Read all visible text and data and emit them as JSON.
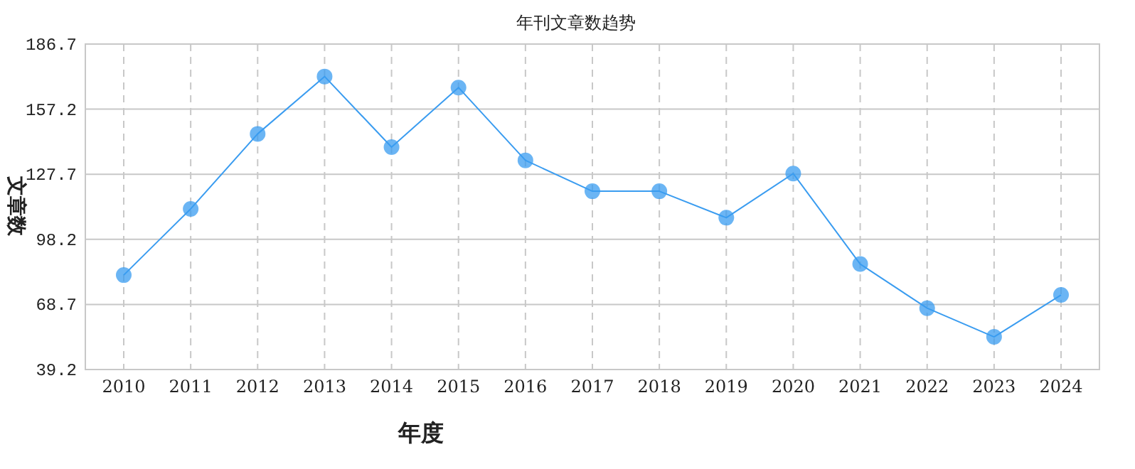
{
  "chart_data": {
    "type": "line",
    "title": "年刊文章数趋势",
    "xlabel": "年度",
    "ylabel": "文章数",
    "categories": [
      "2010",
      "2011",
      "2012",
      "2013",
      "2014",
      "2015",
      "2016",
      "2017",
      "2018",
      "2019",
      "2020",
      "2021",
      "2022",
      "2023",
      "2024"
    ],
    "series": [
      {
        "color": "#3a9cf0",
        "values": [
          82,
          112,
          146,
          172,
          140,
          167,
          134,
          120,
          120,
          108,
          128,
          87,
          67,
          54,
          73
        ]
      }
    ],
    "ylim": [
      39.2,
      186.7
    ],
    "yticks": [
      39.2,
      68.7,
      98.2,
      127.7,
      157.2,
      186.7
    ],
    "grid": true,
    "marker": "circle",
    "line_style": "solid"
  }
}
